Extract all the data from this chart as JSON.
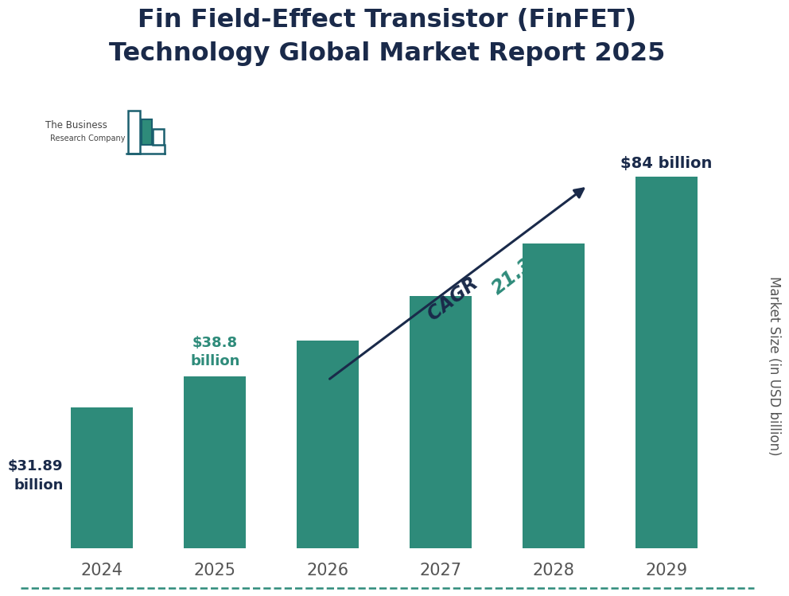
{
  "title": "Fin Field-Effect Transistor (FinFET)\nTechnology Global Market Report 2025",
  "years": [
    "2024",
    "2025",
    "2026",
    "2027",
    "2028",
    "2029"
  ],
  "values": [
    31.89,
    38.8,
    47.0,
    57.0,
    69.0,
    84.0
  ],
  "bar_color": "#2e8b7a",
  "bar_width": 0.55,
  "ylabel": "Market Size (in USD billion)",
  "background_color": "#ffffff",
  "title_color": "#1a2a4a",
  "label_2024": "$31.89\nbillion",
  "label_2025": "$38.8\nbillion",
  "label_2029": "$84 billion",
  "cagr_text_dark": "CAGR ",
  "cagr_text_green": "21.3%",
  "cagr_color": "#2e8b7a",
  "arrow_color": "#1a2a4a",
  "label_color_dark": "#1a2a4a",
  "label_color_green": "#2e8b7a",
  "bottom_line_color": "#2e8b7a",
  "logo_bar_color": "#2e8b7a",
  "logo_outline_color": "#1a5f6e",
  "tick_color": "#555555",
  "ylim_max": 105
}
